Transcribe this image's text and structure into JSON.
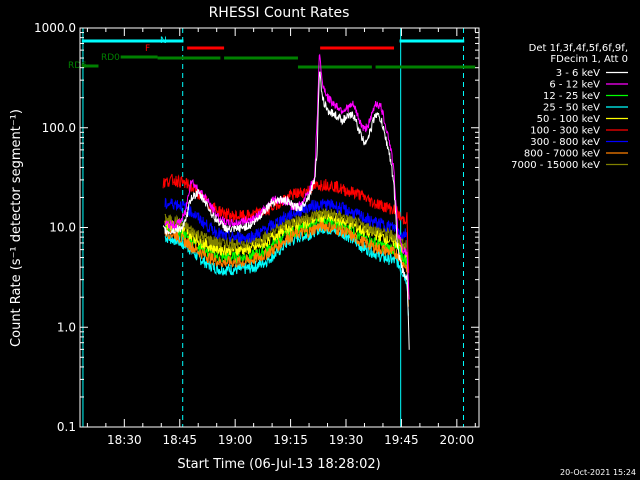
{
  "chart_data": {
    "type": "line",
    "title": "RHESSI Count Rates",
    "xlabel": "Start Time (06-Jul-13 18:28:02)",
    "ylabel": "Count Rate (s⁻¹ detector segment⁻¹)",
    "yscale": "log",
    "ylim": [
      0.1,
      1000
    ],
    "xlim_minutes": [
      18.0,
      96.0
    ],
    "x_ticks": [
      {
        "label": "18:30",
        "m": 30
      },
      {
        "label": "18:45",
        "m": 45
      },
      {
        "label": "19:00",
        "m": 60
      },
      {
        "label": "19:15",
        "m": 75
      },
      {
        "label": "19:30",
        "m": 90
      },
      {
        "label": "19:45",
        "m": 105
      },
      {
        "label": "20:00",
        "m": 120
      }
    ],
    "y_ticks": [
      "1000.0",
      "100.0",
      "10.0",
      "1.0",
      "0.1"
    ],
    "legend_header": [
      "Det 1f,3f,4f,5f,6f,9f,",
      "FDecim 1, Att 0"
    ],
    "legend_position": "right",
    "footer_date": "20-Oct-2021 15:24",
    "series": [
      {
        "name": "3 - 6 keV",
        "color": "#ffffff",
        "x": [
          40.5,
          42,
          44,
          45.5,
          46.5,
          48,
          50,
          52,
          54,
          56,
          58,
          60,
          62,
          64,
          66,
          68,
          70,
          72,
          74,
          76,
          78,
          80,
          81.5,
          82.2,
          82.8,
          83.5,
          85,
          87,
          89,
          90,
          92,
          94,
          95,
          96.5,
          98,
          99.5,
          100.5,
          101.5,
          102.2,
          103,
          104,
          105.5,
          106.5,
          107.2
        ],
        "y": [
          9.5,
          9,
          9.5,
          10,
          11,
          20,
          22,
          18,
          13,
          11,
          9.5,
          9.5,
          10,
          10.5,
          12,
          15,
          18,
          19,
          18.5,
          16,
          16,
          21,
          30,
          60,
          400,
          200,
          150,
          135,
          120,
          125,
          135,
          85,
          70,
          90,
          140,
          120,
          85,
          60,
          45,
          25,
          6,
          3.5,
          3.2,
          0.5
        ]
      },
      {
        "name": "6 - 12 keV",
        "color": "#ff00ff",
        "x": [
          41,
          42.5,
          44,
          45.5,
          46.5,
          48,
          50,
          52,
          54,
          56,
          58,
          60,
          62,
          64,
          66,
          68,
          70,
          72,
          74,
          76,
          78,
          80,
          81.5,
          82.2,
          82.8,
          83.5,
          85,
          87,
          89,
          90,
          92,
          94,
          95,
          96.5,
          98,
          99.5,
          100.5,
          101.5,
          102.2,
          103,
          104,
          105.5,
          106.5,
          107.2
        ],
        "y": [
          11,
          10.5,
          10.5,
          12,
          14,
          30,
          24,
          20,
          15,
          12,
          11,
          11,
          11.5,
          12,
          13,
          15,
          19,
          19,
          18,
          16,
          17,
          23,
          33,
          120,
          600,
          290,
          200,
          170,
          150,
          155,
          170,
          110,
          95,
          115,
          180,
          160,
          115,
          80,
          60,
          35,
          9,
          6,
          5.5,
          1.5
        ]
      },
      {
        "name": "12 - 25 keV",
        "color": "#00ff00",
        "x": [
          41,
          44,
          47,
          50,
          53,
          56,
          59,
          62,
          65,
          68,
          71,
          74,
          77,
          80,
          82,
          84,
          86,
          88,
          90,
          92,
          94,
          96,
          98,
          100,
          102,
          104,
          105.5,
          106.5,
          107
        ],
        "y": [
          10,
          9.5,
          8,
          6.5,
          5.5,
          5,
          5,
          5,
          5.2,
          5.8,
          7,
          8.5,
          9.5,
          10,
          11,
          12,
          11,
          10.5,
          10,
          9,
          8,
          7.5,
          7,
          6.5,
          6.2,
          6,
          5,
          4.5,
          1.5
        ]
      },
      {
        "name": "25 - 50 keV",
        "color": "#00ffff",
        "x": [
          41,
          44,
          47,
          50,
          53,
          56,
          59,
          62,
          65,
          68,
          71,
          74,
          77,
          80,
          82,
          84,
          86,
          88,
          90,
          92,
          94,
          96,
          98,
          100,
          102,
          104,
          105.5,
          106.5,
          107
        ],
        "y": [
          8,
          7.5,
          6.5,
          5,
          4.2,
          3.8,
          3.8,
          3.8,
          4,
          4.5,
          5.5,
          7,
          8,
          8.5,
          9.5,
          10,
          9.5,
          9,
          8.5,
          7.5,
          6.5,
          6,
          5.5,
          5,
          4.8,
          4.5,
          3.5,
          3,
          1
        ]
      },
      {
        "name": "50 - 100 keV",
        "color": "#ffff00",
        "x": [
          41,
          44,
          47,
          50,
          53,
          56,
          59,
          62,
          65,
          68,
          71,
          74,
          77,
          80,
          82,
          84,
          86,
          88,
          90,
          92,
          94,
          96,
          98,
          100,
          102,
          104,
          105.5,
          106.5,
          107
        ],
        "y": [
          11,
          10.5,
          9,
          7.5,
          6.5,
          6,
          6,
          6,
          6.2,
          7,
          8.5,
          10,
          11,
          11.5,
          12.5,
          13,
          12.5,
          12,
          11.5,
          10.5,
          9.5,
          9,
          8.5,
          8,
          7.5,
          7,
          6,
          5.5,
          1.5
        ]
      },
      {
        "name": "100 - 300 keV",
        "color": "#ff0000",
        "x": [
          40.5,
          43,
          45,
          47,
          49,
          51,
          53,
          55,
          57,
          59,
          61,
          63,
          65,
          67,
          69,
          71,
          73,
          75,
          77,
          79,
          81,
          83,
          85,
          87,
          89,
          91,
          93,
          95,
          97,
          99,
          101,
          103,
          104,
          105,
          105.5,
          106.5,
          107
        ],
        "y": [
          28,
          30,
          29,
          27,
          24,
          20,
          17,
          15,
          14,
          13,
          13,
          13,
          13.5,
          14,
          15,
          17,
          19,
          21,
          22,
          23,
          25,
          27,
          27,
          26,
          24,
          23,
          22,
          20,
          18,
          17,
          16,
          15,
          14,
          12,
          12,
          12.5,
          3
        ]
      },
      {
        "name": "300 - 800 keV",
        "color": "#0000ff",
        "x": [
          41,
          43,
          45,
          47,
          49,
          51,
          53,
          55,
          57,
          59,
          61,
          63,
          65,
          67,
          69,
          71,
          73,
          75,
          77,
          79,
          81,
          83,
          85,
          87,
          89,
          91,
          93,
          95,
          97,
          99,
          101,
          103,
          104,
          105,
          105.5,
          106.5,
          107
        ],
        "y": [
          17,
          17.5,
          17,
          15.5,
          13.5,
          11.5,
          10,
          9,
          8.2,
          8,
          8,
          8,
          8.3,
          9,
          10,
          11,
          12.5,
          13.5,
          14.5,
          15.5,
          16.5,
          17,
          17,
          16.5,
          15.5,
          14.5,
          13.5,
          12.5,
          11.5,
          11,
          10.5,
          10,
          9.5,
          8.5,
          8.5,
          9,
          2.5
        ]
      },
      {
        "name": "800 - 7000 keV",
        "color": "#ff8000",
        "x": [
          41,
          44,
          47,
          50,
          53,
          56,
          59,
          62,
          65,
          68,
          71,
          74,
          77,
          80,
          82,
          84,
          86,
          88,
          90,
          92,
          94,
          96,
          98,
          100,
          102,
          104,
          105.5,
          106.5,
          107
        ],
        "y": [
          9,
          8.5,
          7,
          5.8,
          5,
          4.5,
          4.5,
          4.5,
          4.8,
          5.3,
          6.3,
          7.8,
          8.8,
          9,
          10,
          10.5,
          10,
          9.5,
          9,
          8,
          7.3,
          6.8,
          6.3,
          6,
          5.7,
          5.5,
          4.3,
          4,
          1.2
        ]
      },
      {
        "name": "7000 - 15000 keV",
        "color": "#808000",
        "x": [
          41,
          44,
          47,
          50,
          53,
          56,
          59,
          62,
          65,
          68,
          71,
          74,
          77,
          80,
          82,
          84,
          86,
          88,
          90,
          92,
          94,
          96,
          98,
          100,
          102,
          104,
          105.5,
          106.5,
          107
        ],
        "y": [
          12,
          11.5,
          10,
          8.5,
          7.5,
          7,
          7,
          7,
          7.3,
          8,
          9.5,
          11,
          12,
          12.5,
          13.5,
          14,
          13.5,
          13,
          12.5,
          11.5,
          10.5,
          10,
          9.5,
          9,
          8.5,
          8,
          7,
          6.5,
          1.8
        ]
      }
    ],
    "state_bars": [
      {
        "label": "N",
        "color": "#00ffff",
        "spans": [
          [
            18.5,
            46
          ],
          [
            104.5,
            122
          ]
        ],
        "level": 670
      },
      {
        "label": "F",
        "color": "#ff0000",
        "spans": [
          [
            47,
            57
          ],
          [
            83,
            103
          ]
        ],
        "level": 540
      },
      {
        "label": "RD0",
        "color": "#008000",
        "spans": [
          [
            29,
            39
          ]
        ],
        "level": 470
      },
      {
        "label": "RD6",
        "color": "#008000",
        "spans": [
          [
            18.5,
            23
          ]
        ],
        "level": 400
      },
      {
        "label": "",
        "color": "#008000",
        "spans": [
          [
            39,
            56
          ],
          [
            57,
            77
          ]
        ],
        "level": 440
      },
      {
        "label": "",
        "color": "#008000",
        "spans": [
          [
            77,
            97
          ],
          [
            98,
            125
          ]
        ],
        "level": 390
      }
    ],
    "vertical_lines": [
      {
        "m": 18.8,
        "style": "solid",
        "color": "#00ffff"
      },
      {
        "m": 45.8,
        "style": "dashed",
        "color": "#00ffff"
      },
      {
        "m": 104.8,
        "style": "solid",
        "color": "#00ffff"
      },
      {
        "m": 121.8,
        "style": "dashed",
        "color": "#00ffff"
      }
    ]
  }
}
